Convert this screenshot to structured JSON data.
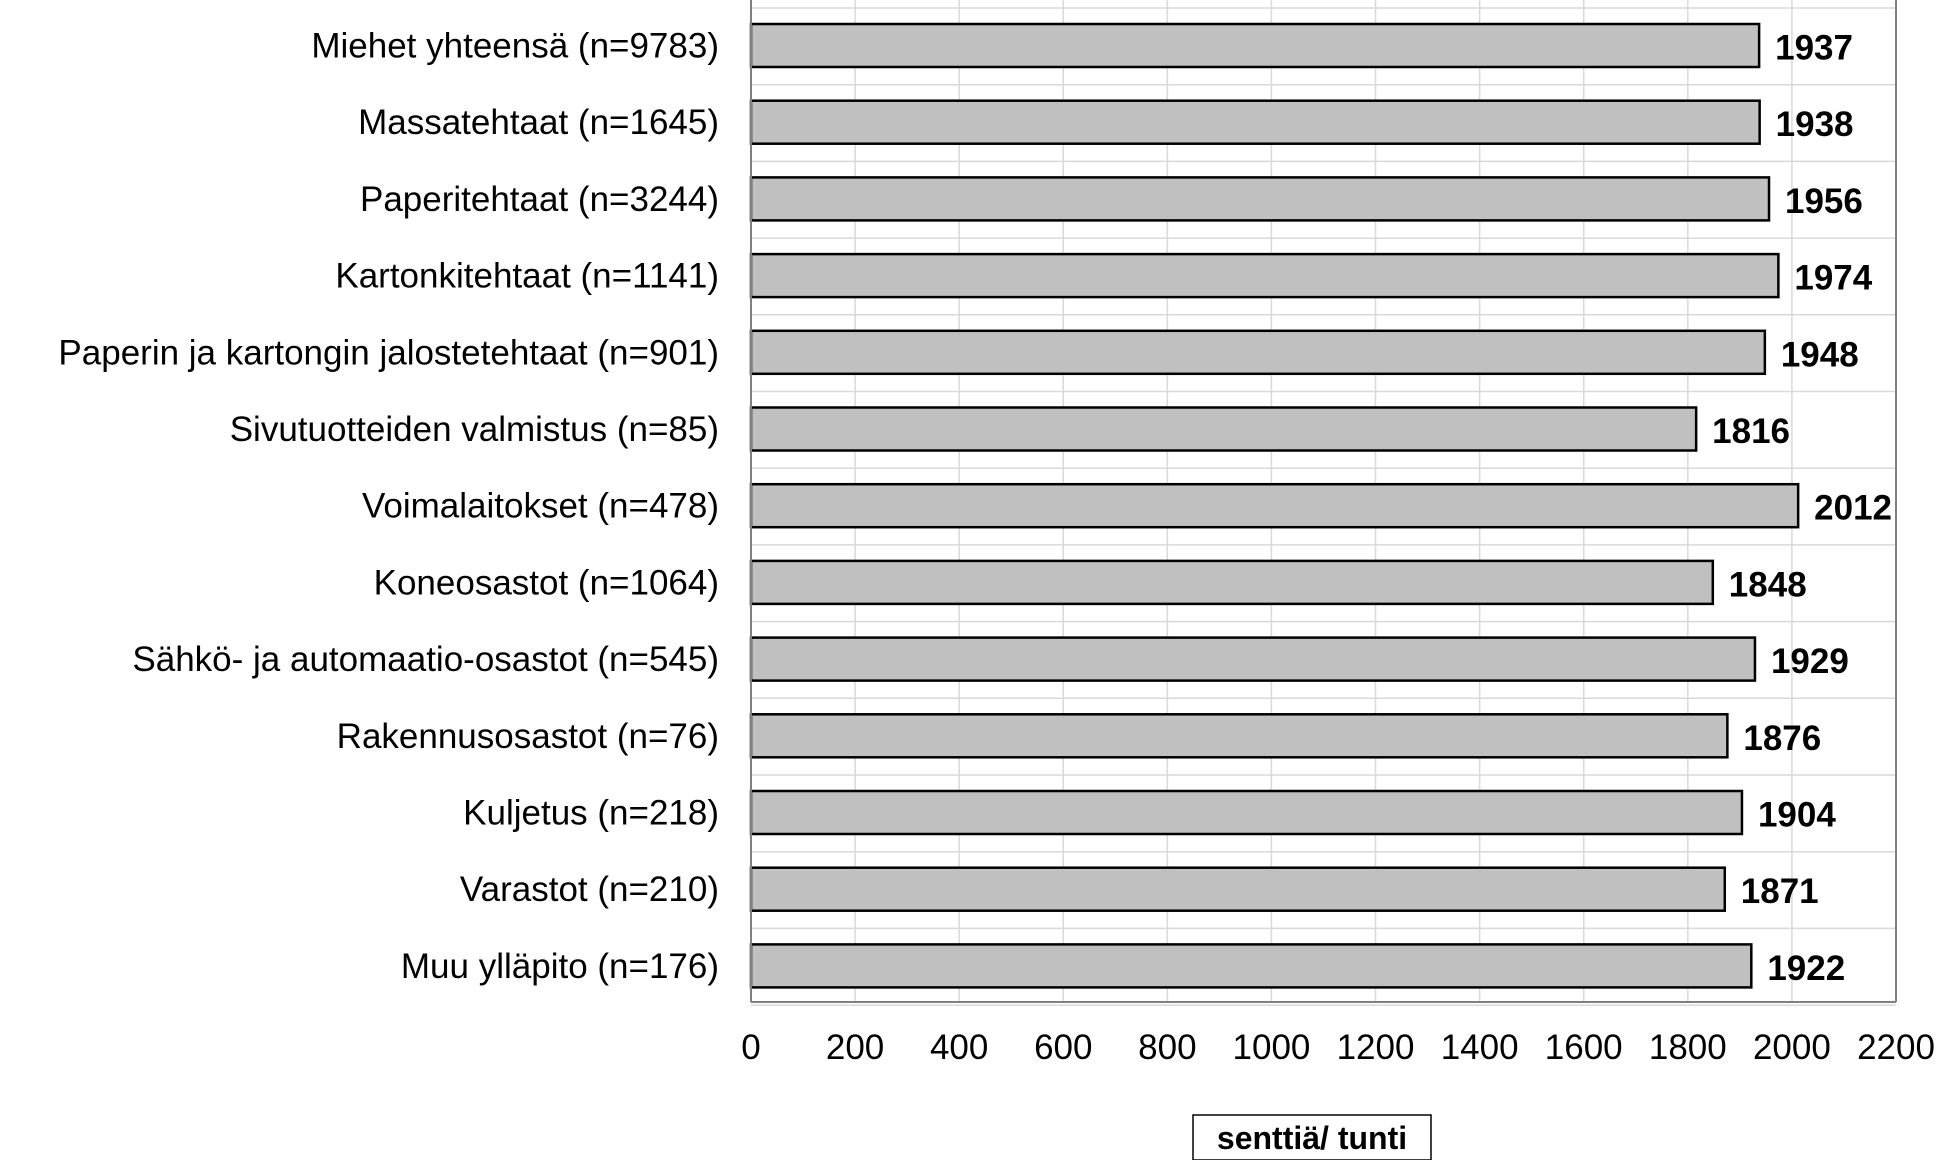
{
  "chart_data": {
    "type": "bar",
    "orientation": "horizontal",
    "categories": [
      "Miehet yhteensä (n=9783)",
      "Massatehtaat (n=1645)",
      "Paperitehtaat (n=3244)",
      "Kartonkitehtaat (n=1141)",
      "Paperin ja kartongin jalostetehtaat (n=901)",
      "Sivutuotteiden valmistus (n=85)",
      "Voimalaitokset (n=478)",
      "Koneosastot (n=1064)",
      "Sähkö- ja automaatio-osastot (n=545)",
      "Rakennusosastot (n=76)",
      "Kuljetus  (n=218)",
      "Varastot (n=210)",
      "Muu ylläpito (n=176)"
    ],
    "values": [
      1937,
      1938,
      1956,
      1974,
      1948,
      1816,
      2012,
      1848,
      1929,
      1876,
      1904,
      1871,
      1922
    ],
    "xlabel": "senttiä/ tunti",
    "xlim": [
      0,
      2200
    ],
    "xticks": [
      "0",
      "200",
      "400",
      "600",
      "800",
      "1000",
      "1200",
      "1400",
      "1600",
      "1800",
      "2000",
      "2200"
    ],
    "grid": true,
    "bar_color": "#c0c0c0",
    "bar_edge_color": "#000000",
    "grid_color": "#d9d9d9",
    "axis_color": "#808080"
  }
}
